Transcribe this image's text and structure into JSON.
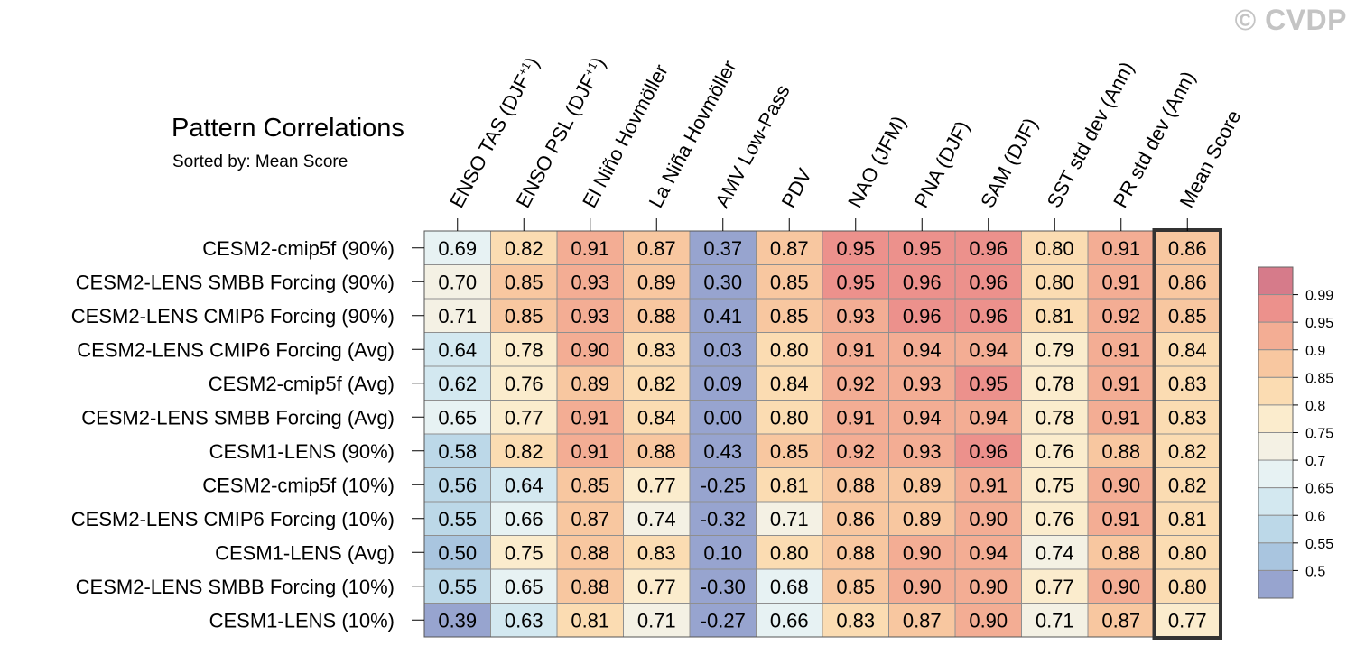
{
  "watermark": "© CVDP",
  "title": "Pattern Correlations",
  "subtitle": "Sorted by: Mean Score",
  "chart_data": {
    "type": "heatmap",
    "columns": [
      "ENSO TAS (DJF+1)",
      "ENSO PSL (DJF+1)",
      "El Niño Hovmöller",
      "La Niña Hovmöller",
      "AMV Low-Pass",
      "PDV",
      "NAO (JFM)",
      "PNA (DJF)",
      "SAM (DJF)",
      "SST std dev (Ann)",
      "PR std dev (Ann)",
      "Mean Score"
    ],
    "highlighted_column": "Mean Score",
    "rows": [
      {
        "label": "CESM2-cmip5f (90%)",
        "values": [
          "0.69",
          "0.82",
          "0.91",
          "0.87",
          "0.37",
          "0.87",
          "0.95",
          "0.95",
          "0.96",
          "0.80",
          "0.91",
          "0.86"
        ]
      },
      {
        "label": "CESM2-LENS SMBB Forcing (90%)",
        "values": [
          "0.70",
          "0.85",
          "0.93",
          "0.89",
          "0.30",
          "0.85",
          "0.95",
          "0.96",
          "0.96",
          "0.80",
          "0.91",
          "0.86"
        ]
      },
      {
        "label": "CESM2-LENS CMIP6 Forcing (90%)",
        "values": [
          "0.71",
          "0.85",
          "0.93",
          "0.88",
          "0.41",
          "0.85",
          "0.93",
          "0.96",
          "0.96",
          "0.81",
          "0.92",
          "0.85"
        ]
      },
      {
        "label": "CESM2-LENS CMIP6 Forcing (Avg)",
        "values": [
          "0.64",
          "0.78",
          "0.90",
          "0.83",
          "0.03",
          "0.80",
          "0.91",
          "0.94",
          "0.94",
          "0.79",
          "0.91",
          "0.84"
        ]
      },
      {
        "label": "CESM2-cmip5f (Avg)",
        "values": [
          "0.62",
          "0.76",
          "0.89",
          "0.82",
          "0.09",
          "0.84",
          "0.92",
          "0.93",
          "0.95",
          "0.78",
          "0.91",
          "0.83"
        ]
      },
      {
        "label": "CESM2-LENS SMBB Forcing (Avg)",
        "values": [
          "0.65",
          "0.77",
          "0.91",
          "0.84",
          "0.00",
          "0.80",
          "0.91",
          "0.94",
          "0.94",
          "0.78",
          "0.91",
          "0.83"
        ]
      },
      {
        "label": "CESM1-LENS (90%)",
        "values": [
          "0.58",
          "0.82",
          "0.91",
          "0.88",
          "0.43",
          "0.85",
          "0.92",
          "0.93",
          "0.96",
          "0.76",
          "0.88",
          "0.82"
        ]
      },
      {
        "label": "CESM2-cmip5f (10%)",
        "values": [
          "0.56",
          "0.64",
          "0.85",
          "0.77",
          "-0.25",
          "0.81",
          "0.88",
          "0.89",
          "0.91",
          "0.75",
          "0.90",
          "0.82"
        ]
      },
      {
        "label": "CESM2-LENS CMIP6 Forcing (10%)",
        "values": [
          "0.55",
          "0.66",
          "0.87",
          "0.74",
          "-0.32",
          "0.71",
          "0.86",
          "0.89",
          "0.90",
          "0.76",
          "0.91",
          "0.81"
        ]
      },
      {
        "label": "CESM1-LENS (Avg)",
        "values": [
          "0.50",
          "0.75",
          "0.88",
          "0.83",
          "0.10",
          "0.80",
          "0.88",
          "0.90",
          "0.94",
          "0.74",
          "0.88",
          "0.80"
        ]
      },
      {
        "label": "CESM2-LENS SMBB Forcing (10%)",
        "values": [
          "0.55",
          "0.65",
          "0.88",
          "0.77",
          "-0.30",
          "0.68",
          "0.85",
          "0.90",
          "0.90",
          "0.77",
          "0.90",
          "0.80"
        ]
      },
      {
        "label": "CESM1-LENS (10%)",
        "values": [
          "0.39",
          "0.63",
          "0.81",
          "0.71",
          "-0.27",
          "0.66",
          "0.83",
          "0.87",
          "0.90",
          "0.71",
          "0.87",
          "0.77"
        ]
      }
    ],
    "colorbar": {
      "tick_labels": [
        "0.99",
        "0.95",
        "0.9",
        "0.85",
        "0.8",
        "0.75",
        "0.7",
        "0.65",
        "0.6",
        "0.55",
        "0.5"
      ],
      "levels": [
        0.5,
        0.55,
        0.6,
        0.65,
        0.7,
        0.75,
        0.8,
        0.85,
        0.9,
        0.95,
        0.99
      ],
      "colors": [
        "#97a4cf",
        "#a9c5df",
        "#bcd8e8",
        "#d3e8f0",
        "#e7f2f3",
        "#f4f1e4",
        "#fbeccd",
        "#fbdcb2",
        "#f8c7a0",
        "#f3ad94",
        "#ec918c",
        "#d67b8a"
      ]
    }
  }
}
